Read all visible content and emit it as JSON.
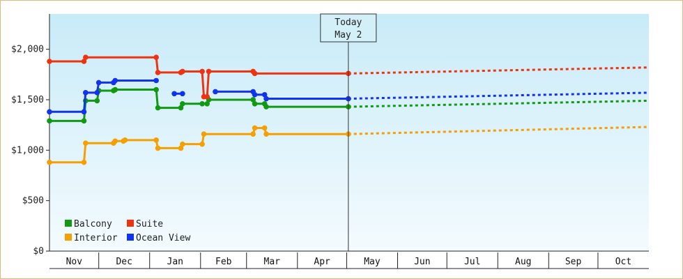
{
  "chart_data": {
    "type": "line",
    "title": "",
    "xlabel": "",
    "ylabel": "",
    "y_tick_labels": [
      "$0",
      "$500",
      "$1,000",
      "$1,500",
      "$2,000"
    ],
    "y_tick_values": [
      0,
      500,
      1000,
      1500,
      2000
    ],
    "ylim": [
      0,
      2350
    ],
    "x_months": [
      "Nov",
      "Dec",
      "Jan",
      "Feb",
      "Mar",
      "Apr",
      "May",
      "Jun",
      "Jul",
      "Aug",
      "Sep",
      "Oct"
    ],
    "x_month_boundaries": [
      "2025-11-01",
      "2025-12-01",
      "2026-01-01",
      "2026-02-01",
      "2026-03-01",
      "2026-04-01",
      "2026-05-01",
      "2026-06-01",
      "2026-07-01",
      "2026-08-01",
      "2026-09-01",
      "2026-10-01",
      "2026-11-01"
    ],
    "xlim": [
      "2025-11-01",
      "2026-11-01"
    ],
    "today": {
      "label_line1": "Today",
      "label_line2": "May 2",
      "date": "2026-05-02"
    },
    "legend": {
      "placement": "bottom-left"
    },
    "series": [
      {
        "name": "Balcony",
        "color": "#119911",
        "points": [
          [
            "2025-11-01",
            1290
          ],
          [
            "2025-11-22",
            1290
          ],
          [
            "2025-11-23",
            1490
          ],
          [
            "2025-11-30",
            1490
          ],
          [
            "2025-12-01",
            1590
          ],
          [
            "2025-12-10",
            1590
          ],
          [
            "2025-12-11",
            1600
          ],
          [
            "2026-01-05",
            1600
          ],
          [
            "2026-01-06",
            1420
          ],
          [
            "2026-01-20",
            1420
          ],
          [
            "2026-01-21",
            1460
          ],
          [
            "2026-02-02",
            1460
          ],
          [
            "2026-02-05",
            1460
          ],
          [
            "2026-02-06",
            1500
          ],
          [
            "2026-03-05",
            1500
          ],
          [
            "2026-03-06",
            1460
          ],
          [
            "2026-03-12",
            1460
          ],
          [
            "2026-03-13",
            1430
          ],
          [
            "2026-05-02",
            1430
          ]
        ],
        "forecast": [
          [
            "2026-05-02",
            1430
          ],
          [
            "2026-11-01",
            1490
          ]
        ]
      },
      {
        "name": "Suite",
        "color": "#ee3311",
        "points": [
          [
            "2025-11-01",
            1880
          ],
          [
            "2025-11-22",
            1880
          ],
          [
            "2025-11-23",
            1920
          ],
          [
            "2026-01-05",
            1920
          ],
          [
            "2026-01-06",
            1770
          ],
          [
            "2026-01-20",
            1770
          ],
          [
            "2026-01-21",
            1780
          ],
          [
            "2026-02-02",
            1780
          ],
          [
            "2026-02-03",
            1530
          ],
          [
            "2026-02-05",
            1530
          ],
          [
            "2026-02-06",
            1780
          ],
          [
            "2026-03-05",
            1780
          ],
          [
            "2026-03-06",
            1760
          ],
          [
            "2026-05-02",
            1760
          ]
        ],
        "forecast": [
          [
            "2026-05-02",
            1760
          ],
          [
            "2026-11-01",
            1820
          ]
        ]
      },
      {
        "name": "Interior",
        "color": "#f5a000",
        "points": [
          [
            "2025-11-01",
            880
          ],
          [
            "2025-11-22",
            880
          ],
          [
            "2025-11-23",
            1070
          ],
          [
            "2025-12-10",
            1070
          ],
          [
            "2025-12-11",
            1090
          ],
          [
            "2025-12-16",
            1090
          ],
          [
            "2025-12-17",
            1100
          ],
          [
            "2026-01-05",
            1100
          ],
          [
            "2026-01-06",
            1020
          ],
          [
            "2026-01-20",
            1020
          ],
          [
            "2026-01-21",
            1060
          ],
          [
            "2026-02-02",
            1060
          ],
          [
            "2026-02-03",
            1160
          ],
          [
            "2026-03-05",
            1160
          ],
          [
            "2026-03-06",
            1220
          ],
          [
            "2026-03-12",
            1220
          ],
          [
            "2026-03-13",
            1160
          ],
          [
            "2026-05-02",
            1160
          ]
        ],
        "forecast": [
          [
            "2026-05-02",
            1160
          ],
          [
            "2026-11-01",
            1230
          ]
        ]
      },
      {
        "name": "Ocean View",
        "color": "#1133ee",
        "segments": [
          [
            [
              "2025-11-01",
              1380
            ],
            [
              "2025-11-22",
              1380
            ],
            [
              "2025-11-23",
              1570
            ],
            [
              "2025-11-30",
              1570
            ],
            [
              "2025-12-01",
              1670
            ],
            [
              "2025-12-10",
              1670
            ],
            [
              "2025-12-11",
              1690
            ],
            [
              "2026-01-05",
              1690
            ]
          ],
          [
            [
              "2026-01-16",
              1560
            ],
            [
              "2026-01-21",
              1560
            ]
          ],
          [
            [
              "2026-02-10",
              1580
            ],
            [
              "2026-03-05",
              1580
            ],
            [
              "2026-03-06",
              1550
            ],
            [
              "2026-03-12",
              1550
            ],
            [
              "2026-03-13",
              1510
            ],
            [
              "2026-05-02",
              1510
            ]
          ]
        ],
        "forecast": [
          [
            "2026-05-02",
            1510
          ],
          [
            "2026-11-01",
            1570
          ]
        ]
      }
    ]
  }
}
